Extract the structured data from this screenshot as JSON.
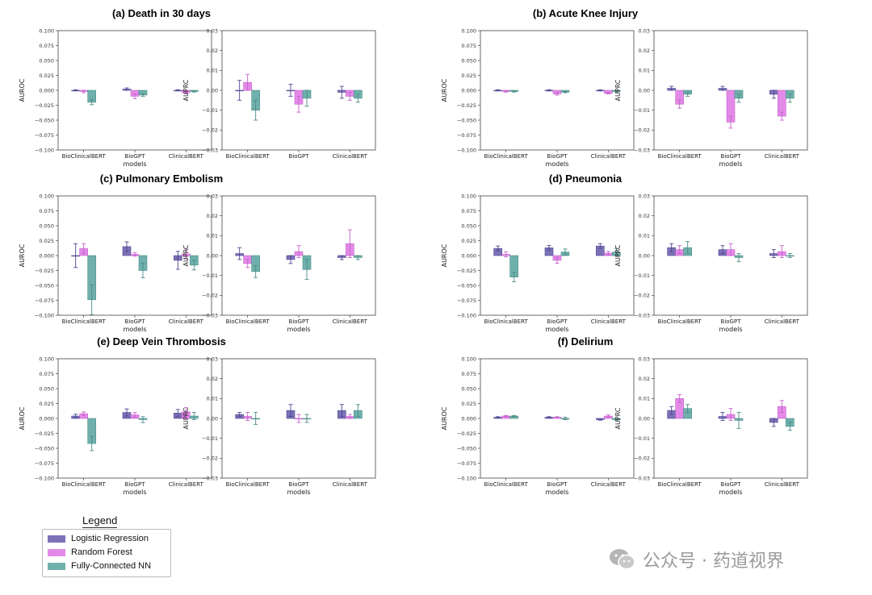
{
  "colors": {
    "lr": "#7b72b8",
    "rf": "#e38ae8",
    "fcnn": "#6fb0ac",
    "lr_edge": "#4e4790",
    "rf_edge": "#c560cc",
    "fcnn_edge": "#4a8c88"
  },
  "legend": {
    "title": "Legend",
    "items": [
      {
        "label": "Logistic Regression",
        "color": "#7b72b8"
      },
      {
        "label": "Random Forest",
        "color": "#e38ae8"
      },
      {
        "label": "Fully-Connected NN",
        "color": "#6fb0ac"
      }
    ]
  },
  "watermark": {
    "icon": "wechat-icon",
    "text": "公众号 · 药道视界"
  },
  "chart_data": [
    {
      "type": "bar",
      "panel": "a",
      "title": "(a) Death in 30 days",
      "metric": "AUROC",
      "categories": [
        "BioClinicalBERT",
        "BioGPT",
        "ClinicalBERT"
      ],
      "xlabel": "models",
      "ylabel": "AUROC",
      "ylim": [
        -0.1,
        0.1
      ],
      "yticks": [
        "0.100",
        "0.075",
        "0.050",
        "0.025",
        "0.000",
        "−0.025",
        "−0.050",
        "−0.075",
        "−0.100"
      ],
      "series": [
        {
          "name": "Logistic Regression",
          "values": [
            0.0,
            0.002,
            0.0
          ],
          "errors": [
            0.001,
            0.002,
            0.001
          ]
        },
        {
          "name": "Random Forest",
          "values": [
            -0.002,
            -0.01,
            -0.004
          ],
          "errors": [
            0.002,
            0.004,
            0.002
          ]
        },
        {
          "name": "Fully-Connected NN",
          "values": [
            -0.02,
            -0.008,
            -0.002
          ],
          "errors": [
            0.004,
            0.002,
            0.001
          ]
        }
      ]
    },
    {
      "type": "bar",
      "panel": "a",
      "title": "",
      "metric": "AUPRC",
      "categories": [
        "BioClinicalBERT",
        "BioGPT",
        "ClinicalBERT"
      ],
      "xlabel": "",
      "ylabel": "AUPRC",
      "ylim": [
        -0.03,
        0.03
      ],
      "yticks": [
        "0.03",
        "0.02",
        "0.01",
        "0.00",
        "−0.01",
        "−0.02",
        "−0.03"
      ],
      "series": [
        {
          "name": "Logistic Regression",
          "values": [
            0.0,
            0.0,
            -0.001
          ],
          "errors": [
            0.005,
            0.003,
            0.003
          ]
        },
        {
          "name": "Random Forest",
          "values": [
            0.004,
            -0.007,
            -0.003
          ],
          "errors": [
            0.004,
            0.004,
            0.002
          ]
        },
        {
          "name": "Fully-Connected NN",
          "values": [
            -0.01,
            -0.004,
            -0.004
          ],
          "errors": [
            0.005,
            0.004,
            0.002
          ]
        }
      ]
    },
    {
      "type": "bar",
      "panel": "b",
      "title": "(b) Acute Knee Injury",
      "metric": "AUROC",
      "categories": [
        "BioClinicalBERT",
        "BioGPT",
        "ClinicalBERT"
      ],
      "xlabel": "models",
      "ylabel": "AUROC",
      "ylim": [
        -0.1,
        0.1
      ],
      "yticks": [
        "0.100",
        "0.075",
        "0.050",
        "0.025",
        "0.000",
        "−0.025",
        "−0.050",
        "−0.075",
        "−0.100"
      ],
      "series": [
        {
          "name": "Logistic Regression",
          "values": [
            0.0,
            0.0,
            0.0
          ],
          "errors": [
            0.001,
            0.001,
            0.001
          ]
        },
        {
          "name": "Random Forest",
          "values": [
            -0.002,
            -0.006,
            -0.005
          ],
          "errors": [
            0.001,
            0.002,
            0.001
          ]
        },
        {
          "name": "Fully-Connected NN",
          "values": [
            -0.002,
            -0.003,
            -0.002
          ],
          "errors": [
            0.001,
            0.001,
            0.001
          ]
        }
      ]
    },
    {
      "type": "bar",
      "panel": "b",
      "title": "",
      "metric": "AUPRC",
      "categories": [
        "BioClinicalBERT",
        "BioGPT",
        "ClinicalBERT"
      ],
      "xlabel": "models",
      "ylabel": "AUPRC",
      "ylim": [
        -0.03,
        0.03
      ],
      "yticks": [
        "0.03",
        "0.02",
        "0.01",
        "0.00",
        "−0.01",
        "−0.02",
        "−0.03"
      ],
      "series": [
        {
          "name": "Logistic Regression",
          "values": [
            0.001,
            0.001,
            -0.002
          ],
          "errors": [
            0.001,
            0.001,
            0.002
          ]
        },
        {
          "name": "Random Forest",
          "values": [
            -0.007,
            -0.016,
            -0.013
          ],
          "errors": [
            0.002,
            0.003,
            0.002
          ]
        },
        {
          "name": "Fully-Connected NN",
          "values": [
            -0.002,
            -0.004,
            -0.004
          ],
          "errors": [
            0.001,
            0.002,
            0.002
          ]
        }
      ]
    },
    {
      "type": "bar",
      "panel": "c",
      "title": "(c) Pulmonary Embolism",
      "metric": "AUROC",
      "categories": [
        "BioClinicalBERT",
        "BioGPT",
        "ClinicalBERT"
      ],
      "xlabel": "models",
      "ylabel": "AUROC",
      "ylim": [
        -0.1,
        0.1
      ],
      "yticks": [
        "0.100",
        "0.075",
        "0.050",
        "0.025",
        "0.000",
        "−0.025",
        "−0.050",
        "−0.075",
        "−0.100"
      ],
      "series": [
        {
          "name": "Logistic Regression",
          "values": [
            0.0,
            0.015,
            -0.008
          ],
          "errors": [
            0.02,
            0.008,
            0.015
          ]
        },
        {
          "name": "Random Forest",
          "values": [
            0.012,
            0.002,
            0.003
          ],
          "errors": [
            0.008,
            0.003,
            0.009
          ]
        },
        {
          "name": "Fully-Connected NN",
          "values": [
            -0.074,
            -0.025,
            -0.016
          ],
          "errors": [
            0.025,
            0.012,
            0.008
          ]
        }
      ]
    },
    {
      "type": "bar",
      "panel": "c",
      "title": "",
      "metric": "AUPRC",
      "categories": [
        "BioClinicalBERT",
        "BioGPT",
        "ClinicalBERT"
      ],
      "xlabel": "models",
      "ylabel": "AUPRC",
      "ylim": [
        -0.03,
        0.03
      ],
      "yticks": [
        "0.03",
        "0.02",
        "0.01",
        "0.00",
        "−0.01",
        "−0.02",
        "−0.03"
      ],
      "series": [
        {
          "name": "Logistic Regression",
          "values": [
            0.001,
            -0.002,
            -0.001
          ],
          "errors": [
            0.003,
            0.002,
            0.001
          ]
        },
        {
          "name": "Random Forest",
          "values": [
            -0.004,
            0.002,
            0.006
          ],
          "errors": [
            0.002,
            0.003,
            0.007
          ]
        },
        {
          "name": "Fully-Connected NN",
          "values": [
            -0.008,
            -0.007,
            -0.001
          ],
          "errors": [
            0.003,
            0.005,
            0.001
          ]
        }
      ]
    },
    {
      "type": "bar",
      "panel": "d",
      "title": "(d) Pneumonia",
      "metric": "AUROC",
      "categories": [
        "BioClinicalBERT",
        "BioGPT",
        "ClinicalBERT"
      ],
      "xlabel": "models",
      "ylabel": "AUROC",
      "ylim": [
        -0.1,
        0.1
      ],
      "yticks": [
        "0.100",
        "0.075",
        "0.050",
        "0.025",
        "0.000",
        "−0.025",
        "−0.050",
        "−0.075",
        "−0.100"
      ],
      "series": [
        {
          "name": "Logistic Regression",
          "values": [
            0.012,
            0.013,
            0.016
          ],
          "errors": [
            0.004,
            0.004,
            0.004
          ]
        },
        {
          "name": "Random Forest",
          "values": [
            0.002,
            -0.008,
            0.004
          ],
          "errors": [
            0.004,
            0.005,
            0.003
          ]
        },
        {
          "name": "Fully-Connected NN",
          "values": [
            -0.036,
            0.006,
            0.006
          ],
          "errors": [
            0.008,
            0.005,
            0.006
          ]
        }
      ]
    },
    {
      "type": "bar",
      "panel": "d",
      "title": "",
      "metric": "AUPRC",
      "categories": [
        "BioClinicalBERT",
        "BioGPT",
        "ClinicalBERT"
      ],
      "xlabel": "models",
      "ylabel": "AUPRC",
      "ylim": [
        -0.03,
        0.03
      ],
      "yticks": [
        "0.03",
        "0.02",
        "0.01",
        "0.00",
        "−0.01",
        "−0.02",
        "−0.03"
      ],
      "series": [
        {
          "name": "Logistic Regression",
          "values": [
            0.004,
            0.003,
            0.001
          ],
          "errors": [
            0.002,
            0.002,
            0.002
          ]
        },
        {
          "name": "Random Forest",
          "values": [
            0.003,
            0.003,
            0.002
          ],
          "errors": [
            0.002,
            0.003,
            0.003
          ]
        },
        {
          "name": "Fully-Connected NN",
          "values": [
            0.004,
            -0.001,
            0.0
          ],
          "errors": [
            0.003,
            0.002,
            0.001
          ]
        }
      ]
    },
    {
      "type": "bar",
      "panel": "e",
      "title": "(e) Deep Vein Thrombosis",
      "metric": "AUROC",
      "categories": [
        "BioClinicalBERT",
        "BioGPT",
        "ClinicalBERT"
      ],
      "xlabel": "models",
      "ylabel": "AUROC",
      "ylim": [
        -0.1,
        0.1
      ],
      "yticks": [
        "0.100",
        "0.075",
        "0.050",
        "0.025",
        "0.000",
        "−0.025",
        "−0.050",
        "−0.075",
        "−0.100"
      ],
      "series": [
        {
          "name": "Logistic Regression",
          "values": [
            0.004,
            0.01,
            0.009
          ],
          "errors": [
            0.003,
            0.006,
            0.006
          ]
        },
        {
          "name": "Random Forest",
          "values": [
            0.008,
            0.006,
            0.011
          ],
          "errors": [
            0.003,
            0.004,
            0.007
          ]
        },
        {
          "name": "Fully-Connected NN",
          "values": [
            -0.042,
            -0.002,
            0.004
          ],
          "errors": [
            0.012,
            0.005,
            0.006
          ]
        }
      ]
    },
    {
      "type": "bar",
      "panel": "e",
      "title": "",
      "metric": "AUPRC",
      "categories": [
        "BioClinicalBERT",
        "BioGPT",
        "ClinicalBERT"
      ],
      "xlabel": "models",
      "ylabel": "AUPRC",
      "ylim": [
        -0.03,
        0.03
      ],
      "yticks": [
        "0.03",
        "0.02",
        "0.01",
        "0.00",
        "−0.01",
        "−0.02",
        "−0.03"
      ],
      "series": [
        {
          "name": "Logistic Regression",
          "values": [
            0.002,
            0.004,
            0.004
          ],
          "errors": [
            0.001,
            0.003,
            0.003
          ]
        },
        {
          "name": "Random Forest",
          "values": [
            0.001,
            0.0,
            0.001
          ],
          "errors": [
            0.002,
            0.002,
            0.001
          ]
        },
        {
          "name": "Fully-Connected NN",
          "values": [
            0.0,
            0.0,
            0.004
          ],
          "errors": [
            0.003,
            0.002,
            0.003
          ]
        }
      ]
    },
    {
      "type": "bar",
      "panel": "f",
      "title": "(f) Delirium",
      "metric": "AUROC",
      "categories": [
        "BioClinicalBERT",
        "BioGPT",
        "ClinicalBERT"
      ],
      "xlabel": "models",
      "ylabel": "AUROC",
      "ylim": [
        -0.1,
        0.1
      ],
      "yticks": [
        "0.100",
        "0.075",
        "0.050",
        "0.025",
        "0.000",
        "−0.025",
        "−0.050",
        "−0.075",
        "−0.100"
      ],
      "series": [
        {
          "name": "Logistic Regression",
          "values": [
            0.002,
            0.002,
            -0.002
          ],
          "errors": [
            0.001,
            0.001,
            0.001
          ]
        },
        {
          "name": "Random Forest",
          "values": [
            0.004,
            0.002,
            0.004
          ],
          "errors": [
            0.001,
            0.001,
            0.002
          ]
        },
        {
          "name": "Fully-Connected NN",
          "values": [
            0.004,
            0.0,
            -0.002
          ],
          "errors": [
            0.001,
            0.002,
            0.001
          ]
        }
      ]
    },
    {
      "type": "bar",
      "panel": "f",
      "title": "",
      "metric": "AUPRC",
      "categories": [
        "BioClinicalBERT",
        "BioGPT",
        "ClinicalBERT"
      ],
      "xlabel": "models",
      "ylabel": "AUPRC",
      "ylim": [
        -0.03,
        0.03
      ],
      "yticks": [
        "0.03",
        "0.02",
        "0.01",
        "0.00",
        "−0.01",
        "−0.02",
        "−0.03"
      ],
      "series": [
        {
          "name": "Logistic Regression",
          "values": [
            0.004,
            0.001,
            -0.002
          ],
          "errors": [
            0.002,
            0.002,
            0.002
          ]
        },
        {
          "name": "Random Forest",
          "values": [
            0.01,
            0.002,
            0.006
          ],
          "errors": [
            0.002,
            0.003,
            0.003
          ]
        },
        {
          "name": "Fully-Connected NN",
          "values": [
            0.005,
            -0.001,
            -0.004
          ],
          "errors": [
            0.002,
            0.004,
            0.002
          ]
        }
      ]
    }
  ]
}
